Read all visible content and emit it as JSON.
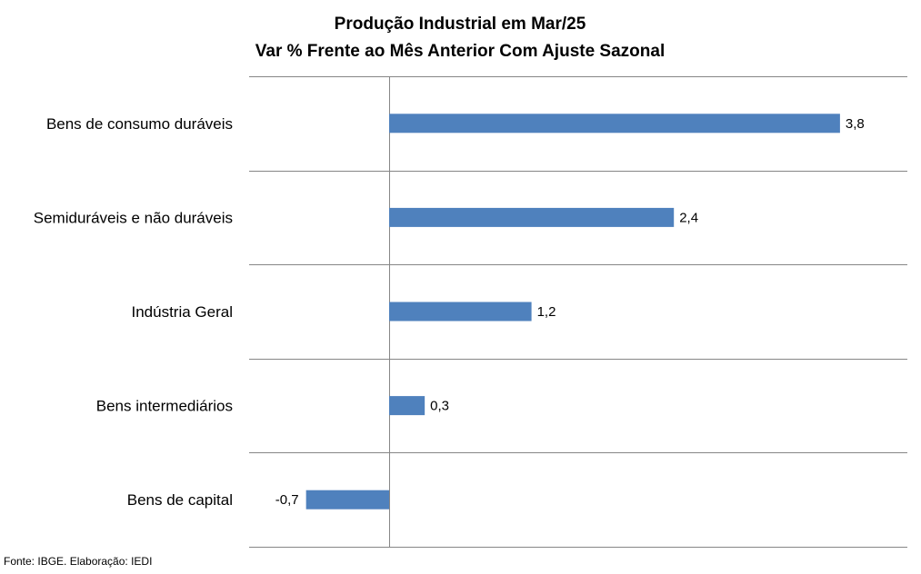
{
  "chart_data": {
    "type": "bar",
    "orientation": "horizontal",
    "title": "Produção Industrial em Mar/25",
    "subtitle": "Var % Frente ao Mês Anterior Com Ajuste Sazonal",
    "categories": [
      "Bens de consumo duráveis",
      "Semiduráveis e não duráveis",
      "Indústria Geral",
      "Bens intermediários",
      "Bens de capital"
    ],
    "values": [
      3.8,
      2.4,
      1.2,
      0.3,
      -0.7
    ],
    "value_labels": [
      "3,8",
      "2,4",
      "1,2",
      "0,3",
      "-0,7"
    ],
    "xlim": [
      -1.0,
      4.0
    ],
    "grid": true,
    "bar_color": "#4f81bd",
    "source": "Fonte: IBGE. Elaboração: IEDI"
  }
}
